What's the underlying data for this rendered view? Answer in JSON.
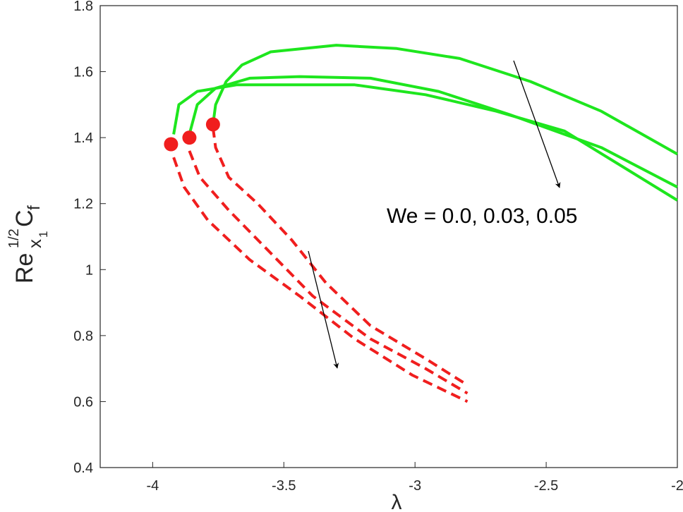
{
  "chart_data": {
    "type": "line",
    "xlabel": "λ",
    "ylabel": {
      "base": "Re",
      "sub": "x",
      "subsub": "1",
      "sup": "1/2",
      "main": "C",
      "main_sub": "f"
    },
    "annotation": "We = 0.0, 0.03, 0.05",
    "xlim": [
      -4.2,
      -2
    ],
    "xticks": [
      -4,
      -3.5,
      -3,
      -2.5,
      -2
    ],
    "ylim": [
      0.4,
      1.8
    ],
    "yticks": [
      0.4,
      0.6,
      0.8,
      1,
      1.2,
      1.4,
      1.6,
      1.8
    ],
    "grid": false,
    "series": [
      {
        "color": "#1ee61e",
        "style": "solid",
        "x": [
          -3.77,
          -3.76,
          -3.72,
          -3.66,
          -3.55,
          -3.3,
          -3.07,
          -2.83,
          -2.56,
          -2.29,
          -2.0
        ],
        "values": [
          1.44,
          1.5,
          1.57,
          1.62,
          1.66,
          1.68,
          1.67,
          1.64,
          1.57,
          1.48,
          1.35
        ]
      },
      {
        "color": "#1ee61e",
        "style": "solid",
        "x": [
          -3.86,
          -3.83,
          -3.76,
          -3.63,
          -3.44,
          -3.17,
          -2.91,
          -2.64,
          -2.29,
          -2.0
        ],
        "values": [
          1.41,
          1.5,
          1.55,
          1.58,
          1.585,
          1.58,
          1.54,
          1.47,
          1.37,
          1.25
        ]
      },
      {
        "color": "#1ee61e",
        "style": "solid",
        "x": [
          -3.92,
          -3.9,
          -3.83,
          -3.68,
          -3.5,
          -3.23,
          -2.96,
          -2.69,
          -2.43,
          -2.0
        ],
        "values": [
          1.41,
          1.5,
          1.54,
          1.56,
          1.56,
          1.56,
          1.53,
          1.48,
          1.42,
          1.21
        ]
      },
      {
        "color": "#f01e1e",
        "style": "dashed",
        "x": [
          -3.77,
          -3.76,
          -3.71,
          -3.6,
          -3.47,
          -3.34,
          -3.17,
          -2.96,
          -2.8
        ],
        "values": [
          1.43,
          1.37,
          1.28,
          1.2,
          1.09,
          0.96,
          0.83,
          0.73,
          0.65
        ]
      },
      {
        "color": "#f01e1e",
        "style": "dashed",
        "x": [
          -3.86,
          -3.82,
          -3.71,
          -3.55,
          -3.39,
          -3.17,
          -2.96,
          -2.8
        ],
        "values": [
          1.36,
          1.28,
          1.18,
          1.05,
          0.92,
          0.79,
          0.7,
          0.625
        ]
      },
      {
        "color": "#f01e1e",
        "style": "dashed",
        "x": [
          -3.92,
          -3.88,
          -3.79,
          -3.63,
          -3.44,
          -3.23,
          -3.01,
          -2.8
        ],
        "values": [
          1.34,
          1.25,
          1.15,
          1.03,
          0.92,
          0.79,
          0.68,
          0.6
        ]
      },
      {
        "color": "#f01e1e",
        "style": "marker",
        "x": [
          -3.93,
          -3.86,
          -3.77
        ],
        "values": [
          1.38,
          1.4,
          1.44
        ]
      }
    ]
  }
}
